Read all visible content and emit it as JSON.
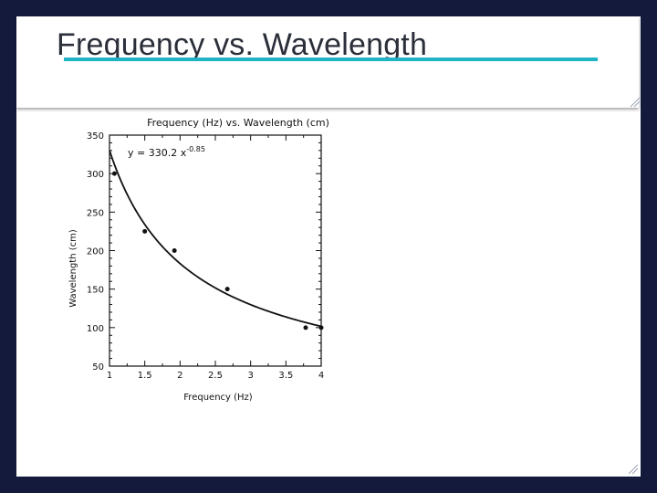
{
  "slide": {
    "title": "Frequency vs. Wavelength",
    "accent_color": "#1fb3c4",
    "background_color": "#131a3c"
  },
  "chart_data": {
    "type": "scatter",
    "title": "Frequency (Hz) vs. Wavelength (cm)",
    "xlabel": "Frequency (Hz)",
    "ylabel": "Wavelength (cm)",
    "xlim": [
      1,
      4
    ],
    "ylim": [
      50,
      350
    ],
    "xticks": [
      1,
      1.5,
      2,
      2.5,
      3,
      3.5,
      4
    ],
    "xtick_labels": [
      "1",
      "1.5",
      "2",
      "2.5",
      "3",
      "3.5",
      "4"
    ],
    "yticks": [
      50,
      100,
      150,
      200,
      250,
      300,
      350
    ],
    "ytick_labels": [
      "50",
      "100",
      "150",
      "200",
      "250",
      "300",
      "350"
    ],
    "grid": false,
    "points": [
      {
        "x": 1.07,
        "y": 300
      },
      {
        "x": 1.5,
        "y": 225
      },
      {
        "x": 1.92,
        "y": 200
      },
      {
        "x": 2.67,
        "y": 150
      },
      {
        "x": 3.78,
        "y": 100
      },
      {
        "x": 4.0,
        "y": 100
      }
    ],
    "fit": {
      "type": "power",
      "a": 330.2,
      "b": -0.85,
      "equation_prefix": "y = 330.2 x",
      "equation_exponent": "-0.85"
    }
  }
}
